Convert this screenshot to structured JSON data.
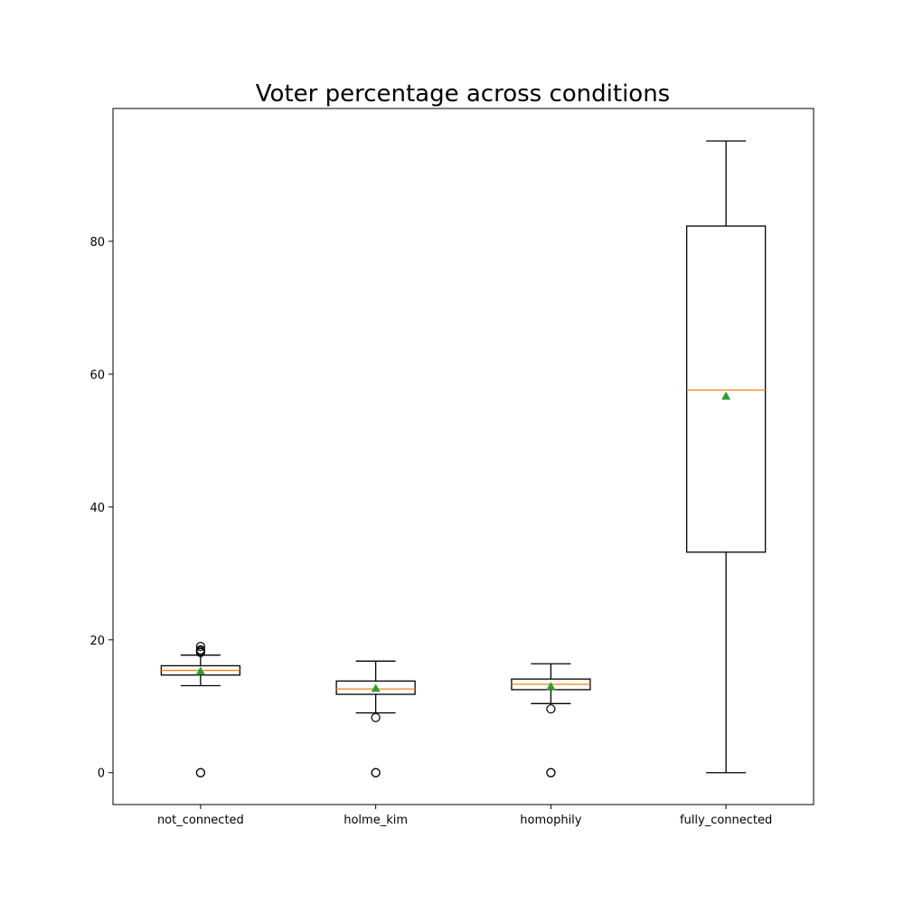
{
  "chart_data": {
    "type": "box",
    "title": "Voter percentage across conditions",
    "xlabel": "",
    "ylabel": "",
    "ylim": [
      -4.8,
      100
    ],
    "yticks": [
      0,
      20,
      40,
      60,
      80
    ],
    "grid": false,
    "categories": [
      "not_connected",
      "holme_kim",
      "homophily",
      "fully_connected"
    ],
    "boxes": [
      {
        "category": "not_connected",
        "whisker_low": 13.1,
        "q1": 14.7,
        "median": 15.4,
        "q3": 16.1,
        "whisker_high": 17.7,
        "mean": 15.3,
        "outliers": [
          0,
          0,
          18.1,
          18.3,
          18.5,
          19.0
        ]
      },
      {
        "category": "holme_kim",
        "whisker_low": 9.0,
        "q1": 11.8,
        "median": 12.6,
        "q3": 13.8,
        "whisker_high": 16.8,
        "mean": 12.7,
        "outliers": [
          8.3,
          0,
          0
        ]
      },
      {
        "category": "homophily",
        "whisker_low": 10.4,
        "q1": 12.5,
        "median": 13.3,
        "q3": 14.1,
        "whisker_high": 16.4,
        "mean": 13.0,
        "outliers": [
          9.6,
          0,
          0
        ]
      },
      {
        "category": "fully_connected",
        "whisker_low": 0,
        "q1": 33.2,
        "median": 57.6,
        "q3": 82.3,
        "whisker_high": 95.1,
        "mean": 56.7,
        "outliers": []
      }
    ],
    "colors": {
      "box": "#000000",
      "median": "#ff7f0e",
      "mean": "#2ca02c",
      "outlier": "#000000"
    }
  }
}
